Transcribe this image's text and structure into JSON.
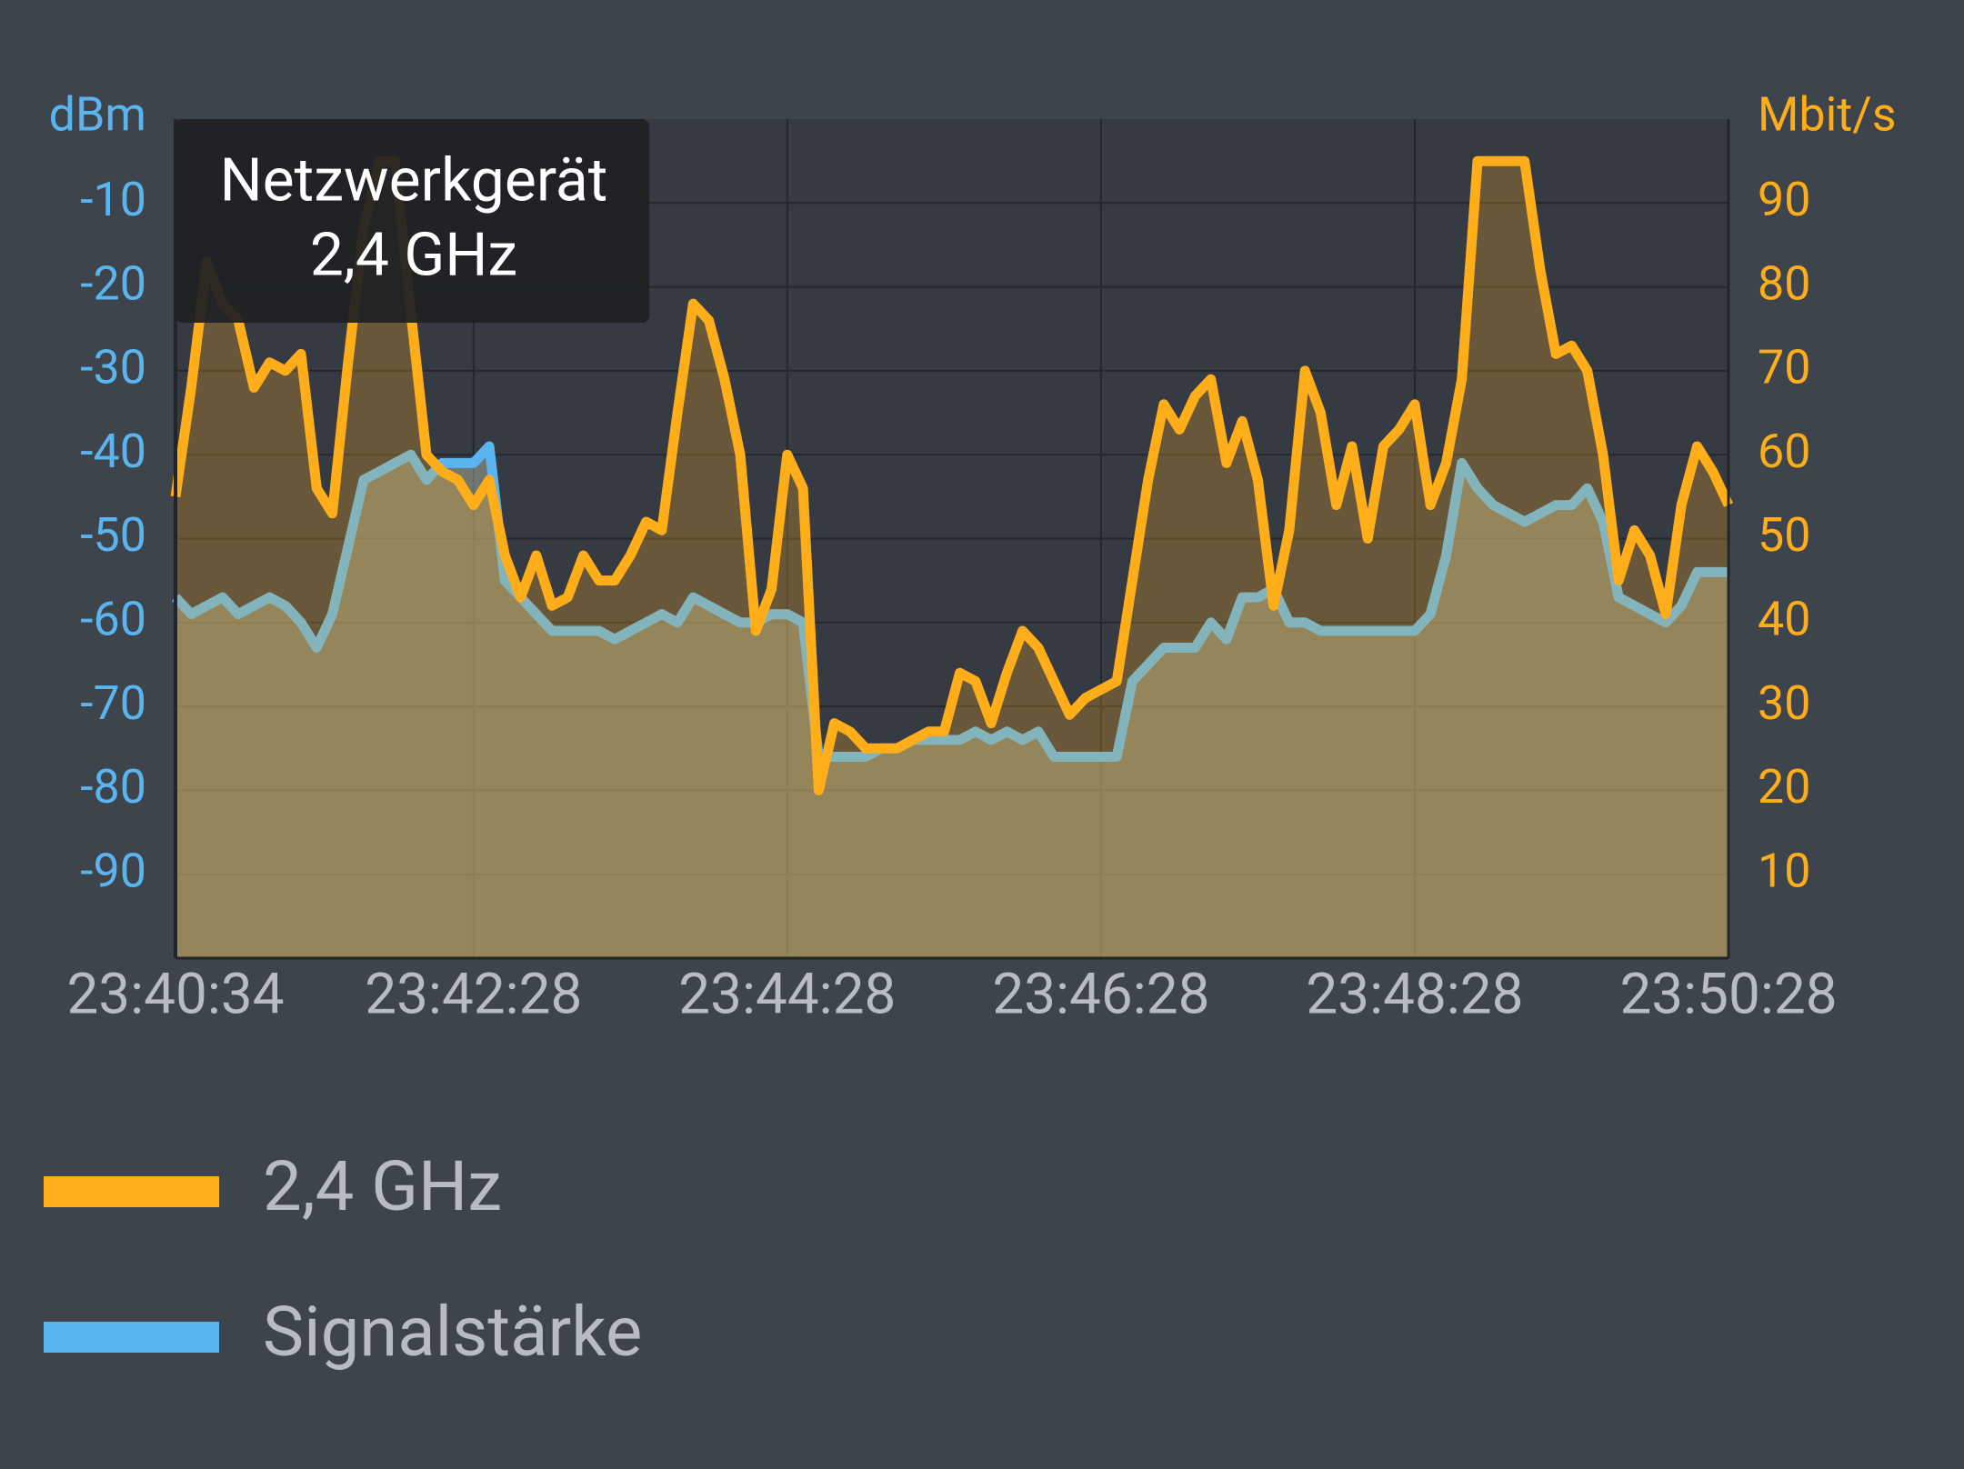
{
  "chart_data": {
    "type": "line",
    "y_label": "dBm",
    "y2_label": "Mbit/s",
    "annotation": [
      "Netzwerkgerät",
      "2,4 GHz"
    ],
    "x": [
      "23:40:34",
      "23:40:40",
      "23:40:46",
      "23:40:52",
      "23:40:58",
      "23:41:04",
      "23:41:10",
      "23:41:16",
      "23:41:22",
      "23:41:28",
      "23:41:34",
      "23:41:40",
      "23:41:46",
      "23:41:52",
      "23:41:58",
      "23:42:04",
      "23:42:10",
      "23:42:16",
      "23:42:22",
      "23:42:28",
      "23:42:34",
      "23:42:40",
      "23:42:46",
      "23:42:52",
      "23:42:58",
      "23:43:04",
      "23:43:10",
      "23:43:16",
      "23:43:22",
      "23:43:28",
      "23:43:34",
      "23:43:40",
      "23:43:46",
      "23:43:52",
      "23:43:58",
      "23:44:04",
      "23:44:10",
      "23:44:16",
      "23:44:22",
      "23:44:28",
      "23:44:34",
      "23:44:40",
      "23:44:46",
      "23:44:52",
      "23:44:58",
      "23:45:04",
      "23:45:10",
      "23:45:16",
      "23:45:22",
      "23:45:28",
      "23:45:34",
      "23:45:40",
      "23:45:46",
      "23:45:52",
      "23:45:58",
      "23:46:04",
      "23:46:10",
      "23:46:16",
      "23:46:22",
      "23:46:28",
      "23:46:34",
      "23:46:40",
      "23:46:46",
      "23:46:52",
      "23:46:58",
      "23:47:04",
      "23:47:10",
      "23:47:16",
      "23:47:22",
      "23:47:28",
      "23:47:34",
      "23:47:40",
      "23:47:46",
      "23:47:52",
      "23:47:58",
      "23:48:04",
      "23:48:10",
      "23:48:16",
      "23:48:22",
      "23:48:28",
      "23:48:34",
      "23:48:40",
      "23:48:46",
      "23:48:52",
      "23:48:58",
      "23:49:04",
      "23:49:10",
      "23:49:16",
      "23:49:22",
      "23:49:28",
      "23:49:34",
      "23:49:40",
      "23:49:46",
      "23:49:52",
      "23:49:58",
      "23:50:04",
      "23:50:10",
      "23:50:16",
      "23:50:22",
      "23:50:28"
    ],
    "xticks": [
      "23:40:34",
      "23:42:28",
      "23:44:28",
      "23:46:28",
      "23:48:28",
      "23:50:28"
    ],
    "ylim": [
      -100,
      0
    ],
    "yticks": [
      -10,
      -20,
      -30,
      -40,
      -50,
      -60,
      -70,
      -80,
      -90
    ],
    "y2lim": [
      0,
      100
    ],
    "y2ticks": [
      90,
      80,
      70,
      60,
      50,
      40,
      30,
      20,
      10
    ],
    "grid": true,
    "legend": "bottom-left",
    "series": [
      {
        "name": "2,4 GHz",
        "color": "#ffae1a",
        "axis": "y2",
        "values": [
          55,
          68,
          83,
          78,
          76,
          68,
          71,
          70,
          72,
          56,
          53,
          71,
          87,
          95,
          95,
          77,
          60,
          58,
          57,
          54,
          57,
          48,
          43,
          48,
          42,
          43,
          48,
          45,
          45,
          48,
          52,
          51,
          65,
          78,
          76,
          69,
          60,
          39,
          44,
          60,
          56,
          20,
          28,
          27,
          25,
          25,
          25,
          26,
          27,
          27,
          34,
          33,
          28,
          34,
          39,
          37,
          33,
          29,
          31,
          32,
          33,
          45,
          57,
          66,
          63,
          67,
          69,
          59,
          64,
          57,
          42,
          51,
          70,
          65,
          54,
          61,
          50,
          61,
          63,
          66,
          54,
          59,
          69,
          95,
          95,
          95,
          95,
          82,
          72,
          73,
          70,
          60,
          45,
          51,
          48,
          41,
          54,
          61,
          58,
          54
        ]
      },
      {
        "name": "Signalstärke",
        "color": "#5ab4f0",
        "axis": "y",
        "values": [
          -57,
          -59,
          -58,
          -57,
          -59,
          -58,
          -57,
          -58,
          -60,
          -63,
          -59,
          -51,
          -43,
          -42,
          -41,
          -40,
          -43,
          -41,
          -41,
          -41,
          -39,
          -55,
          -57,
          -59,
          -61,
          -61,
          -61,
          -61,
          -62,
          -61,
          -60,
          -59,
          -60,
          -57,
          -58,
          -59,
          -60,
          -60,
          -59,
          -59,
          -60,
          -76,
          -76,
          -76,
          -76,
          -75,
          -75,
          -74,
          -74,
          -74,
          -74,
          -73,
          -74,
          -73,
          -74,
          -73,
          -76,
          -76,
          -76,
          -76,
          -76,
          -67,
          -65,
          -63,
          -63,
          -63,
          -60,
          -62,
          -57,
          -57,
          -56,
          -60,
          -60,
          -61,
          -61,
          -61,
          -61,
          -61,
          -61,
          -61,
          -59,
          -52,
          -41,
          -44,
          -46,
          -47,
          -48,
          -47,
          -46,
          -46,
          -44,
          -48,
          -57,
          -58,
          -59,
          -60,
          -58,
          -54,
          -54,
          -54
        ]
      }
    ]
  }
}
